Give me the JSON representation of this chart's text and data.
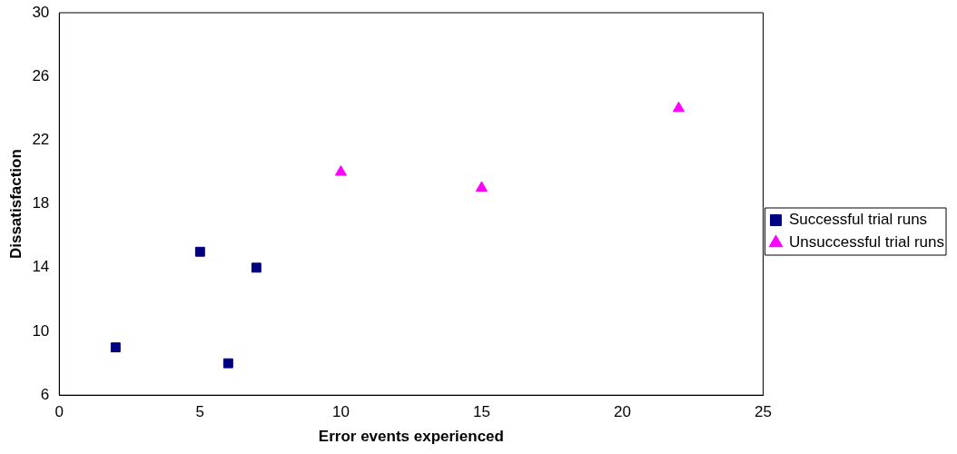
{
  "chart_data": {
    "type": "scatter",
    "xlabel": "Error events experienced",
    "ylabel": "Dissatisfaction",
    "xlim": [
      0,
      25
    ],
    "xticks": [
      0,
      5,
      10,
      15,
      20,
      25
    ],
    "ylim": [
      6,
      30
    ],
    "yticks": [
      6,
      10,
      14,
      18,
      22,
      26,
      30
    ],
    "grid": false,
    "legend": "right",
    "series": [
      {
        "name": "Successful trial runs",
        "color": "#000080",
        "marker": "square",
        "x": [
          2,
          5,
          6,
          7
        ],
        "values": [
          9,
          15,
          8,
          14
        ]
      },
      {
        "name": "Unsuccessful trial runs",
        "color": "#ff00ff",
        "marker": "triangle",
        "x": [
          10,
          15,
          22
        ],
        "values": [
          20,
          19,
          24
        ]
      }
    ]
  }
}
